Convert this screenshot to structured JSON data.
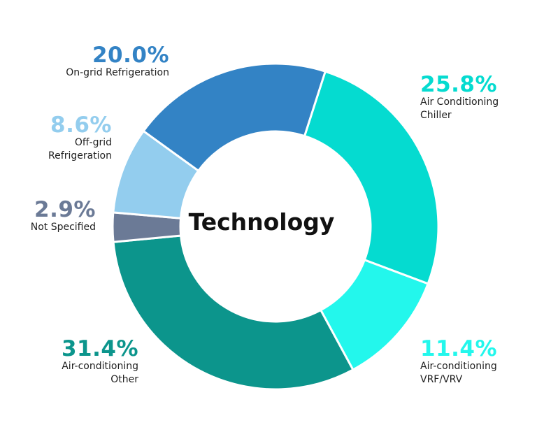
{
  "chart_data": {
    "type": "pie",
    "title": "Technology",
    "slices": [
      {
        "label": "Air Conditioning Chiller",
        "display_label": [
          "Air Conditioning",
          "Chiller"
        ],
        "pct_text": "25.8%",
        "value": 25.8,
        "color": "#05DBD0"
      },
      {
        "label": "Air-conditioning VRF/VRV",
        "display_label": [
          "Air-conditioning",
          "VRF/VRV"
        ],
        "pct_text": "11.4%",
        "value": 11.4,
        "color": "#23F7EC"
      },
      {
        "label": "Air-conditioning Other",
        "display_label": [
          "Air-conditioning",
          "Other"
        ],
        "pct_text": "31.4%",
        "value": 31.4,
        "color": "#0C958C"
      },
      {
        "label": "Not Specified",
        "display_label": [
          "Not Specified"
        ],
        "pct_text": "2.9%",
        "value": 2.9,
        "color": "#6B7A96"
      },
      {
        "label": "Off-grid Refrigeration",
        "display_label": [
          "Off-grid",
          "Refrigeration"
        ],
        "pct_text": "8.6%",
        "value": 8.6,
        "color": "#93CDEE"
      },
      {
        "label": "On-grid Refrigeration",
        "display_label": [
          "On-grid Refrigeration"
        ],
        "pct_text": "20.0%",
        "value": 20.0,
        "color": "#3383C5"
      }
    ]
  }
}
